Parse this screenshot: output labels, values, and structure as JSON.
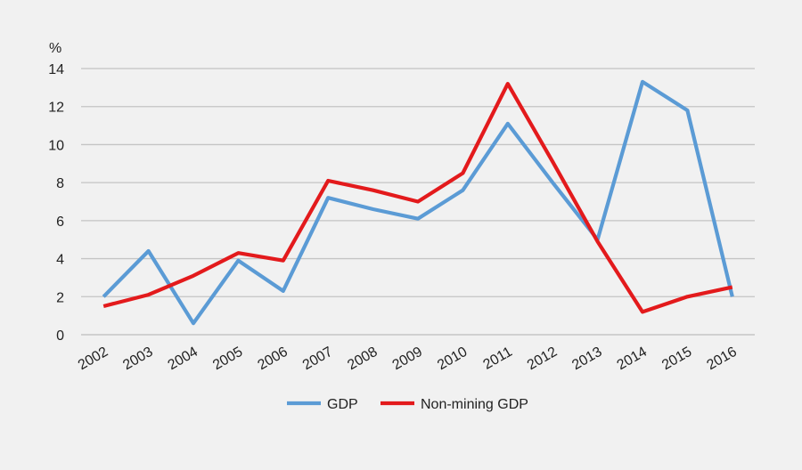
{
  "chart_data": {
    "type": "line",
    "title": "",
    "ylabel": "%",
    "xlabel": "",
    "ylim": [
      0,
      14
    ],
    "yticks": [
      0,
      2,
      4,
      6,
      8,
      10,
      12,
      14
    ],
    "grid": "horizontal",
    "legend_position": "bottom",
    "categories": [
      "2002",
      "2003",
      "2004",
      "2005",
      "2006",
      "2007",
      "2008",
      "2009",
      "2010",
      "2011",
      "2012",
      "2013",
      "2014",
      "2015",
      "2016"
    ],
    "series": [
      {
        "name": "GDP",
        "color": "#5b9bd5",
        "values": [
          2.0,
          4.4,
          0.6,
          3.9,
          2.3,
          7.2,
          6.6,
          6.1,
          7.6,
          11.1,
          8.0,
          5.0,
          13.3,
          11.8,
          2.0
        ]
      },
      {
        "name": "Non-mining GDP",
        "color": "#e31a1c",
        "values": [
          1.5,
          2.1,
          3.1,
          4.3,
          3.9,
          8.1,
          7.6,
          7.0,
          8.5,
          13.2,
          9.1,
          4.9,
          1.2,
          2.0,
          2.5
        ]
      }
    ]
  }
}
